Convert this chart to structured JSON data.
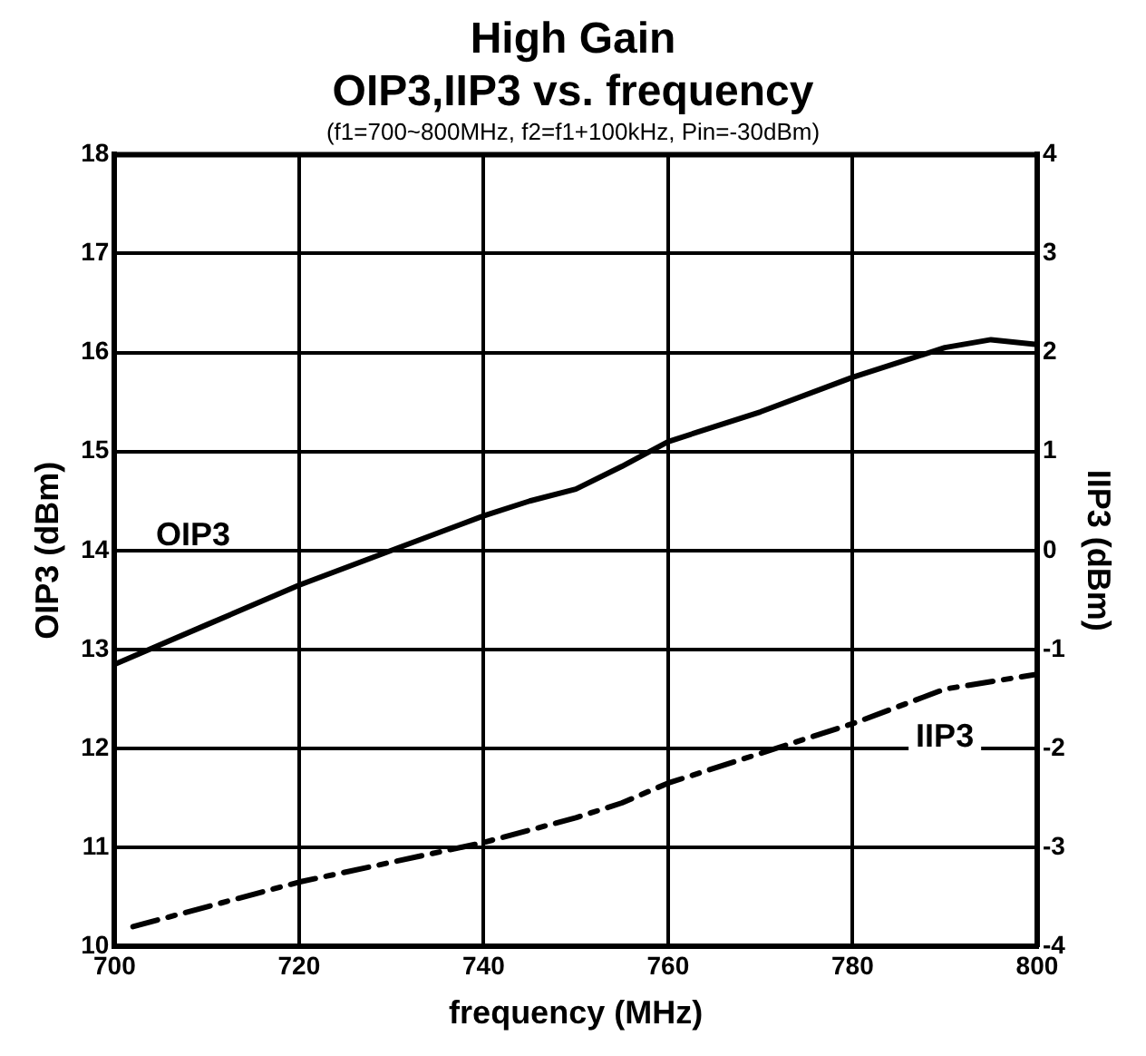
{
  "chart_data": {
    "type": "line",
    "title": "High Gain\nOIP3,IIP3 vs. frequency",
    "subtitle": "(f1=700~800MHz, f2=f1+100kHz, Pin=-30dBm)",
    "xlabel": "frequency (MHz)",
    "ylabel": "OIP3 (dBm)",
    "y2label": "IIP3 (dBm)",
    "xlim": [
      700,
      800
    ],
    "xticks": [
      700,
      720,
      740,
      760,
      780,
      800
    ],
    "ylim": [
      10,
      18
    ],
    "yticks": [
      10,
      11,
      12,
      13,
      14,
      15,
      16,
      17,
      18
    ],
    "y2lim": [
      -4,
      4
    ],
    "y2ticks": [
      -4,
      -3,
      -2,
      -1,
      0,
      1,
      2,
      3,
      4
    ],
    "grid": true,
    "legend": false,
    "marker": "none",
    "series": [
      {
        "name": "OIP3",
        "color": "#000000",
        "line_style": "solid",
        "x": [
          700,
          710,
          720,
          730,
          740,
          745,
          750,
          755,
          760,
          765,
          770,
          780,
          790,
          795,
          800
        ],
        "values": [
          12.85,
          13.25,
          13.65,
          14.0,
          14.35,
          14.5,
          14.62,
          14.85,
          15.1,
          15.25,
          15.4,
          15.75,
          16.05,
          16.13,
          16.08
        ]
      },
      {
        "name": "IIP3",
        "color": "#000000",
        "line_style": "dashed",
        "axis": "y2",
        "x": [
          702,
          710,
          720,
          730,
          740,
          750,
          755,
          760,
          770,
          780,
          790,
          800
        ],
        "values": [
          -3.8,
          -3.6,
          -3.35,
          -3.15,
          -2.95,
          -2.7,
          -2.55,
          -2.35,
          -2.05,
          -1.75,
          -1.4,
          -1.25
        ]
      }
    ]
  }
}
